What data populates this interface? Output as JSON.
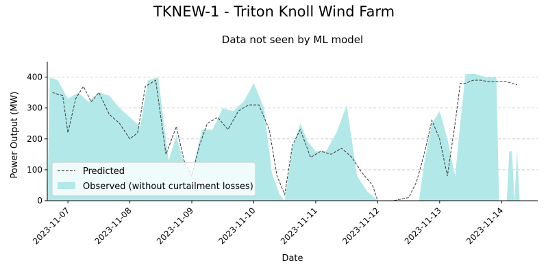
{
  "chart_data": {
    "type": "area",
    "title": "TKNEW-1 - Triton Knoll Wind Farm",
    "subtitle": "Data not seen by ML model",
    "xlabel": "Date",
    "ylabel": "Power Output (MW)",
    "xlim": [
      "2023-11-06 16:00",
      "2023-11-14 14:00"
    ],
    "ylim": [
      0,
      450
    ],
    "x_ticks": [
      "2023-11-07",
      "2023-11-08",
      "2023-11-09",
      "2023-11-10",
      "2023-11-11",
      "2023-11-12",
      "2023-11-13",
      "2023-11-14"
    ],
    "y_ticks": [
      0,
      100,
      200,
      300,
      400
    ],
    "grid": "y",
    "legend_position": "lower-left",
    "colors": {
      "observed": "#b2e8e8",
      "predicted": "#444444"
    },
    "series": [
      {
        "name": "Predicted",
        "style": "dashed-line",
        "x": [
          "2023-11-06 18:00",
          "2023-11-06 22:00",
          "2023-11-07 00:00",
          "2023-11-07 03:00",
          "2023-11-07 06:00",
          "2023-11-07 09:00",
          "2023-11-07 12:00",
          "2023-11-07 16:00",
          "2023-11-07 20:00",
          "2023-11-08 00:00",
          "2023-11-08 03:00",
          "2023-11-08 06:00",
          "2023-11-08 10:00",
          "2023-11-08 14:00",
          "2023-11-08 18:00",
          "2023-11-08 21:00",
          "2023-11-09 00:00",
          "2023-11-09 03:00",
          "2023-11-09 06:00",
          "2023-11-09 10:00",
          "2023-11-09 14:00",
          "2023-11-09 18:00",
          "2023-11-09 22:00",
          "2023-11-10 02:00",
          "2023-11-10 06:00",
          "2023-11-10 09:00",
          "2023-11-10 12:00",
          "2023-11-10 15:00",
          "2023-11-10 18:00",
          "2023-11-10 22:00",
          "2023-11-11 02:00",
          "2023-11-11 06:00",
          "2023-11-11 10:00",
          "2023-11-11 14:00",
          "2023-11-11 18:00",
          "2023-11-11 22:00",
          "2023-11-12 00:00",
          "2023-11-12 06:00",
          "2023-11-12 12:00",
          "2023-11-12 15:00",
          "2023-11-12 18:00",
          "2023-11-12 21:00",
          "2023-11-13 00:00",
          "2023-11-13 03:00",
          "2023-11-13 06:00",
          "2023-11-13 08:00",
          "2023-11-13 10:00",
          "2023-11-13 13:00",
          "2023-11-13 16:00",
          "2023-11-13 19:00",
          "2023-11-13 22:00",
          "2023-11-14 02:00",
          "2023-11-14 06:00"
        ],
        "values": [
          350,
          340,
          220,
          330,
          370,
          320,
          350,
          280,
          250,
          200,
          220,
          370,
          390,
          150,
          240,
          130,
          80,
          180,
          250,
          270,
          230,
          290,
          310,
          310,
          230,
          80,
          20,
          180,
          230,
          140,
          160,
          150,
          170,
          140,
          90,
          50,
          0,
          0,
          10,
          60,
          150,
          260,
          200,
          80,
          250,
          380,
          380,
          390,
          390,
          385,
          385,
          385,
          375
        ]
      },
      {
        "name": "Observed (without curtailment losses)",
        "style": "filled-area",
        "x": [
          "2023-11-06 16:00",
          "2023-11-06 17:00",
          "2023-11-06 20:00",
          "2023-11-07 00:00",
          "2023-11-07 04:00",
          "2023-11-07 08:00",
          "2023-11-07 12:00",
          "2023-11-07 16:00",
          "2023-11-07 20:00",
          "2023-11-08 00:00",
          "2023-11-08 04:00",
          "2023-11-08 07:00",
          "2023-11-08 11:00",
          "2023-11-08 15:00",
          "2023-11-08 18:00",
          "2023-11-08 21:00",
          "2023-11-09 00:00",
          "2023-11-09 04:00",
          "2023-11-09 08:00",
          "2023-11-09 12:00",
          "2023-11-09 16:00",
          "2023-11-09 20:00",
          "2023-11-10 00:00",
          "2023-11-10 04:00",
          "2023-11-10 07:00",
          "2023-11-10 10:00",
          "2023-11-10 12:00",
          "2023-11-10 15:00",
          "2023-11-10 18:00",
          "2023-11-10 21:00",
          "2023-11-11 00:00",
          "2023-11-11 04:00",
          "2023-11-11 08:00",
          "2023-11-11 12:00",
          "2023-11-11 16:00",
          "2023-11-11 20:00",
          "2023-11-12 00:00",
          "2023-11-12 06:00",
          "2023-11-12 12:00",
          "2023-11-12 16:00",
          "2023-11-12 18:00",
          "2023-11-12 21:00",
          "2023-11-13 00:00",
          "2023-11-13 03:00",
          "2023-11-13 06:00",
          "2023-11-13 08:00",
          "2023-11-13 10:00",
          "2023-11-13 14:00",
          "2023-11-13 18:00",
          "2023-11-13 21:00",
          "2023-11-13 22:00",
          "2023-11-13 23:00",
          "2023-11-14 00:00",
          "2023-11-14 02:00",
          "2023-11-14 03:00",
          "2023-11-14 04:00",
          "2023-11-14 05:00",
          "2023-11-14 06:00",
          "2023-11-14 07:00"
        ],
        "values": [
          0,
          400,
          390,
          330,
          350,
          320,
          350,
          340,
          300,
          270,
          240,
          390,
          400,
          130,
          210,
          120,
          90,
          230,
          230,
          300,
          290,
          320,
          380,
          300,
          90,
          20,
          0,
          170,
          250,
          190,
          160,
          160,
          220,
          310,
          80,
          30,
          0,
          0,
          0,
          0,
          120,
          250,
          290,
          200,
          80,
          250,
          410,
          410,
          400,
          400,
          400,
          0,
          0,
          0,
          160,
          160,
          0,
          160,
          0
        ]
      }
    ]
  }
}
